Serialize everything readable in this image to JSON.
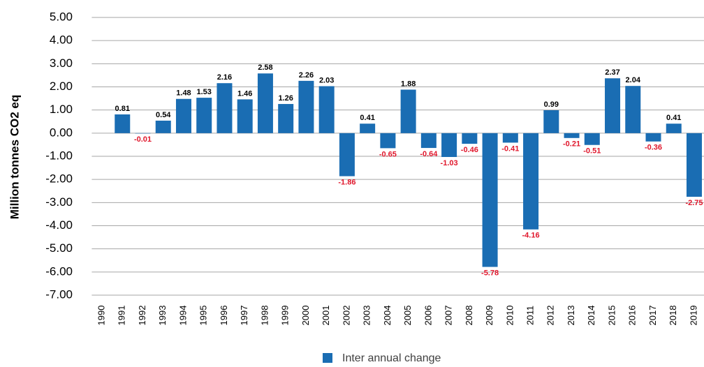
{
  "chart_data": {
    "type": "bar",
    "y_label": "Million tonnes CO2 eq",
    "categories": [
      "1990",
      "1991",
      "1992",
      "1993",
      "1994",
      "1995",
      "1996",
      "1997",
      "1998",
      "1999",
      "2000",
      "2001",
      "2002",
      "2003",
      "2004",
      "2005",
      "2006",
      "2007",
      "2008",
      "2009",
      "2010",
      "2011",
      "2012",
      "2013",
      "2014",
      "2015",
      "2016",
      "2017",
      "2018",
      "2019"
    ],
    "series": [
      {
        "name": "Inter annual change",
        "color": "#1a6db3",
        "values": [
          null,
          0.81,
          -0.01,
          0.54,
          1.48,
          1.53,
          2.16,
          1.46,
          2.58,
          1.26,
          2.26,
          2.03,
          -1.86,
          0.41,
          -0.65,
          1.88,
          -0.64,
          -1.03,
          -0.46,
          -5.78,
          -0.41,
          -4.16,
          0.99,
          -0.21,
          -0.51,
          2.37,
          2.04,
          -0.36,
          0.41,
          -2.75
        ]
      }
    ],
    "ylim": [
      -7,
      5
    ],
    "yticks": [
      {
        "value": -7,
        "label": "-7.00"
      },
      {
        "value": -6,
        "label": "-6.00"
      },
      {
        "value": -5,
        "label": "-5.00"
      },
      {
        "value": -4,
        "label": "-4.00"
      },
      {
        "value": -3,
        "label": "-3.00"
      },
      {
        "value": -2,
        "label": "-2.00"
      },
      {
        "value": -1,
        "label": "-1.00"
      },
      {
        "value": 0,
        "label": "0.00"
      },
      {
        "value": 1,
        "label": "1.00"
      },
      {
        "value": 2,
        "label": "2.00"
      },
      {
        "value": 3,
        "label": "3.00"
      },
      {
        "value": 4,
        "label": "4.00"
      },
      {
        "value": 5,
        "label": "5.00"
      }
    ],
    "grid": true,
    "positive_label_color": "#000000",
    "negative_label_color": "#e0162b",
    "legend": "bottom"
  }
}
